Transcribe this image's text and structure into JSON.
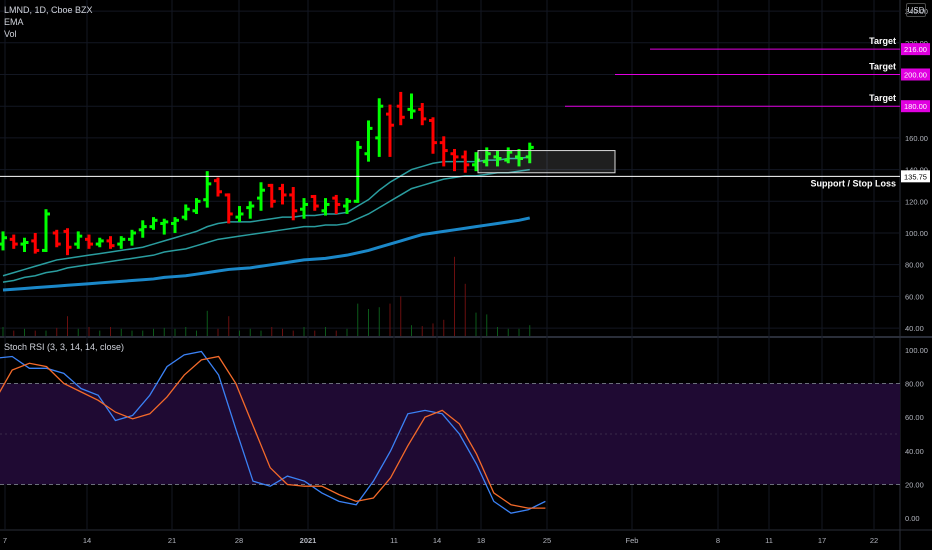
{
  "header": {
    "symbol": "LMND, 1D, Cboe BZX",
    "indicator1": "EMA",
    "indicator2": "Vol",
    "currency": "USD"
  },
  "colors": {
    "up": "#00ff00",
    "down": "#ff0000",
    "target_line": "#e000e0",
    "ema_short": "#2a9d9f",
    "ema_long": "#1b88c9",
    "stoch_k": "#3b82f6",
    "stoch_d": "#f46a2a",
    "stoch_band": "#1f0a33"
  },
  "chart_data": [
    {
      "type": "ohlc",
      "panel": "price",
      "y_ticks": [
        40,
        60,
        80,
        100,
        120,
        140,
        160,
        180,
        200,
        220,
        240
      ],
      "y_tick_labels": [
        "40.00",
        "60.00",
        "80.00",
        "100.00",
        "120.00",
        "140.00",
        "160.00",
        "180.00",
        "200.00",
        "220.00",
        "240.00"
      ],
      "ylim": [
        35,
        247
      ],
      "x_tick_labels": [
        "7",
        "14",
        "21",
        "28",
        "2021",
        "11",
        "14",
        "18",
        "25",
        "Feb",
        "8",
        "11",
        "17",
        "22"
      ],
      "bars": [
        {
          "o": 93,
          "h": 101,
          "l": 89,
          "c": 97,
          "up": true
        },
        {
          "o": 96,
          "h": 99,
          "l": 90,
          "c": 93,
          "up": false
        },
        {
          "o": 93,
          "h": 97,
          "l": 88,
          "c": 94,
          "up": true
        },
        {
          "o": 95,
          "h": 100,
          "l": 87,
          "c": 89,
          "up": false
        },
        {
          "o": 89,
          "h": 115,
          "l": 88,
          "c": 112,
          "up": true
        },
        {
          "o": 100,
          "h": 102,
          "l": 91,
          "c": 93,
          "up": false
        },
        {
          "o": 101,
          "h": 103,
          "l": 86,
          "c": 91,
          "up": false
        },
        {
          "o": 93,
          "h": 101,
          "l": 90,
          "c": 98,
          "up": true
        },
        {
          "o": 96,
          "h": 99,
          "l": 90,
          "c": 93,
          "up": false
        },
        {
          "o": 93,
          "h": 97,
          "l": 91,
          "c": 95,
          "up": true
        },
        {
          "o": 95,
          "h": 98,
          "l": 90,
          "c": 92,
          "up": false
        },
        {
          "o": 93,
          "h": 98,
          "l": 90,
          "c": 96,
          "up": true
        },
        {
          "o": 96,
          "h": 102,
          "l": 92,
          "c": 100,
          "up": true
        },
        {
          "o": 102,
          "h": 108,
          "l": 97,
          "c": 104,
          "up": true
        },
        {
          "o": 104,
          "h": 110,
          "l": 102,
          "c": 108,
          "up": true
        },
        {
          "o": 106,
          "h": 109,
          "l": 99,
          "c": 107,
          "up": true
        },
        {
          "o": 106,
          "h": 110,
          "l": 100,
          "c": 108,
          "up": true
        },
        {
          "o": 110,
          "h": 118,
          "l": 108,
          "c": 115,
          "up": true
        },
        {
          "o": 114,
          "h": 122,
          "l": 112,
          "c": 120,
          "up": true
        },
        {
          "o": 121,
          "h": 139,
          "l": 116,
          "c": 131,
          "up": true
        },
        {
          "o": 133,
          "h": 135,
          "l": 123,
          "c": 126,
          "up": false
        },
        {
          "o": 124,
          "h": 125,
          "l": 106,
          "c": 112,
          "up": false
        },
        {
          "o": 110,
          "h": 117,
          "l": 107,
          "c": 112,
          "up": true
        },
        {
          "o": 116,
          "h": 120,
          "l": 109,
          "c": 117,
          "up": true
        },
        {
          "o": 122,
          "h": 132,
          "l": 114,
          "c": 127,
          "up": true
        },
        {
          "o": 130,
          "h": 131,
          "l": 116,
          "c": 120,
          "up": false
        },
        {
          "o": 128,
          "h": 131,
          "l": 118,
          "c": 124,
          "up": false
        },
        {
          "o": 124,
          "h": 129,
          "l": 108,
          "c": 114,
          "up": false
        },
        {
          "o": 115,
          "h": 122,
          "l": 109,
          "c": 118,
          "up": true
        },
        {
          "o": 123,
          "h": 124,
          "l": 114,
          "c": 117,
          "up": false
        },
        {
          "o": 114,
          "h": 122,
          "l": 111,
          "c": 118,
          "up": true
        },
        {
          "o": 122,
          "h": 124,
          "l": 112,
          "c": 118,
          "up": false
        },
        {
          "o": 117,
          "h": 122,
          "l": 112,
          "c": 120,
          "up": true
        },
        {
          "o": 120,
          "h": 158,
          "l": 119,
          "c": 154,
          "up": true
        },
        {
          "o": 150,
          "h": 171,
          "l": 145,
          "c": 166,
          "up": true
        },
        {
          "o": 160,
          "h": 185,
          "l": 148,
          "c": 180,
          "up": true
        },
        {
          "o": 175,
          "h": 181,
          "l": 148,
          "c": 168,
          "up": false
        },
        {
          "o": 180,
          "h": 189,
          "l": 168,
          "c": 173,
          "up": false
        },
        {
          "o": 178,
          "h": 188,
          "l": 172,
          "c": 177,
          "up": true
        },
        {
          "o": 178,
          "h": 182,
          "l": 168,
          "c": 172,
          "up": false
        },
        {
          "o": 171,
          "h": 173,
          "l": 150,
          "c": 157,
          "up": false
        },
        {
          "o": 157,
          "h": 161,
          "l": 142,
          "c": 152,
          "up": false
        },
        {
          "o": 150,
          "h": 153,
          "l": 139,
          "c": 148,
          "up": false
        },
        {
          "o": 148,
          "h": 152,
          "l": 138,
          "c": 143,
          "up": false
        },
        {
          "o": 143,
          "h": 151,
          "l": 139,
          "c": 146,
          "up": true
        },
        {
          "o": 145,
          "h": 154,
          "l": 142,
          "c": 150,
          "up": true
        },
        {
          "o": 148,
          "h": 152,
          "l": 142,
          "c": 147,
          "up": true
        },
        {
          "o": 146,
          "h": 154,
          "l": 144,
          "c": 151,
          "up": true
        },
        {
          "o": 148,
          "h": 153,
          "l": 142,
          "c": 147,
          "up": true
        },
        {
          "o": 148,
          "h": 157,
          "l": 144,
          "c": 154,
          "up": true
        }
      ],
      "ema_short": [
        73,
        75,
        77,
        79,
        81,
        83,
        84,
        85,
        86,
        87,
        88,
        89,
        90,
        91,
        93,
        95,
        97,
        99,
        101,
        104,
        106,
        107,
        107,
        107,
        108,
        109,
        110,
        110,
        111,
        111,
        112,
        112,
        113,
        117,
        121,
        127,
        132,
        136,
        140,
        142,
        144,
        145,
        145,
        145,
        145,
        146,
        146,
        147,
        147,
        148
      ],
      "ema_mid": [
        69,
        70,
        72,
        73,
        75,
        76,
        78,
        79,
        80,
        81,
        82,
        83,
        84,
        85,
        86,
        88,
        89,
        90,
        92,
        94,
        96,
        97,
        98,
        99,
        100,
        101,
        102,
        103,
        104,
        104,
        105,
        105,
        106,
        109,
        112,
        116,
        120,
        124,
        128,
        130,
        132,
        134,
        135,
        136,
        136,
        137,
        138,
        138,
        139,
        140
      ],
      "ema_long": [
        64,
        64.5,
        65,
        65.5,
        66,
        66.5,
        67,
        67.5,
        68,
        68.5,
        69,
        69.5,
        70,
        70.5,
        71,
        72,
        72.5,
        73,
        74,
        75,
        76,
        77,
        77.5,
        78,
        79,
        80,
        81,
        82,
        83,
        83.5,
        84,
        85,
        86,
        87.5,
        89,
        91,
        93,
        95,
        97,
        99,
        100,
        101,
        102,
        103,
        104,
        105,
        106,
        107,
        108,
        109.5
      ],
      "volume": [
        10,
        6,
        8,
        6,
        6,
        9,
        22,
        8,
        10,
        6,
        10,
        8,
        6,
        6,
        8,
        9,
        8,
        10,
        6,
        28,
        8,
        22,
        6,
        8,
        6,
        10,
        8,
        6,
        10,
        6,
        10,
        6,
        8,
        36,
        30,
        32,
        36,
        44,
        12,
        11,
        14,
        18,
        88,
        58,
        26,
        24,
        10,
        8,
        8,
        12
      ],
      "annotations": {
        "targets": [
          {
            "label": "Target",
            "price_label": "216.00",
            "value": 216
          },
          {
            "label": "Target",
            "price_label": "200.00",
            "value": 200
          },
          {
            "label": "Target",
            "price_label": "180.00",
            "value": 180
          }
        ],
        "support": {
          "label": "Support / Stop Loss",
          "price_label": "135.75",
          "value": 135.75
        },
        "overlap_label": "220.00",
        "consolidation_box": {
          "top": 152,
          "bottom": 138
        },
        "price_marker_label": "140.00"
      }
    },
    {
      "type": "line",
      "panel": "oscillator",
      "title": "Stoch RSI (3, 3, 14, 14, close)",
      "y_ticks": [
        0,
        20,
        40,
        60,
        80,
        100
      ],
      "y_tick_labels": [
        "0.00",
        "20.00",
        "40.00",
        "60.00",
        "80.00",
        "100.00"
      ],
      "ylim": [
        -7,
        107
      ],
      "band": [
        20,
        80
      ],
      "series": [
        {
          "values": [
            95,
            96,
            89,
            89,
            86,
            77,
            73,
            58,
            61,
            73,
            90,
            97,
            99,
            85,
            53,
            22,
            19,
            25,
            22,
            15,
            10,
            8,
            22,
            40,
            62,
            64,
            62,
            50,
            32,
            10,
            3,
            5,
            10
          ]
        },
        {
          "values": [
            70,
            88,
            92,
            90,
            80,
            75,
            70,
            63,
            59,
            62,
            72,
            85,
            94,
            96,
            80,
            55,
            30,
            20,
            19,
            19,
            14,
            10,
            12,
            24,
            43,
            60,
            64,
            56,
            38,
            15,
            8,
            6,
            6
          ]
        }
      ]
    }
  ]
}
